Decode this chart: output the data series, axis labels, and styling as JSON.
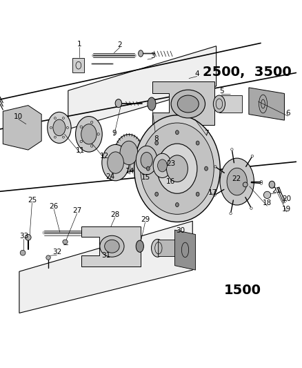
{
  "bg_color": "#ffffff",
  "line_color": "#000000",
  "fig_width": 4.38,
  "fig_height": 5.33,
  "title_2500": "2500,  3500",
  "title_1500": "1500",
  "title_fontsize": 14,
  "label_fontsize": 7.5
}
